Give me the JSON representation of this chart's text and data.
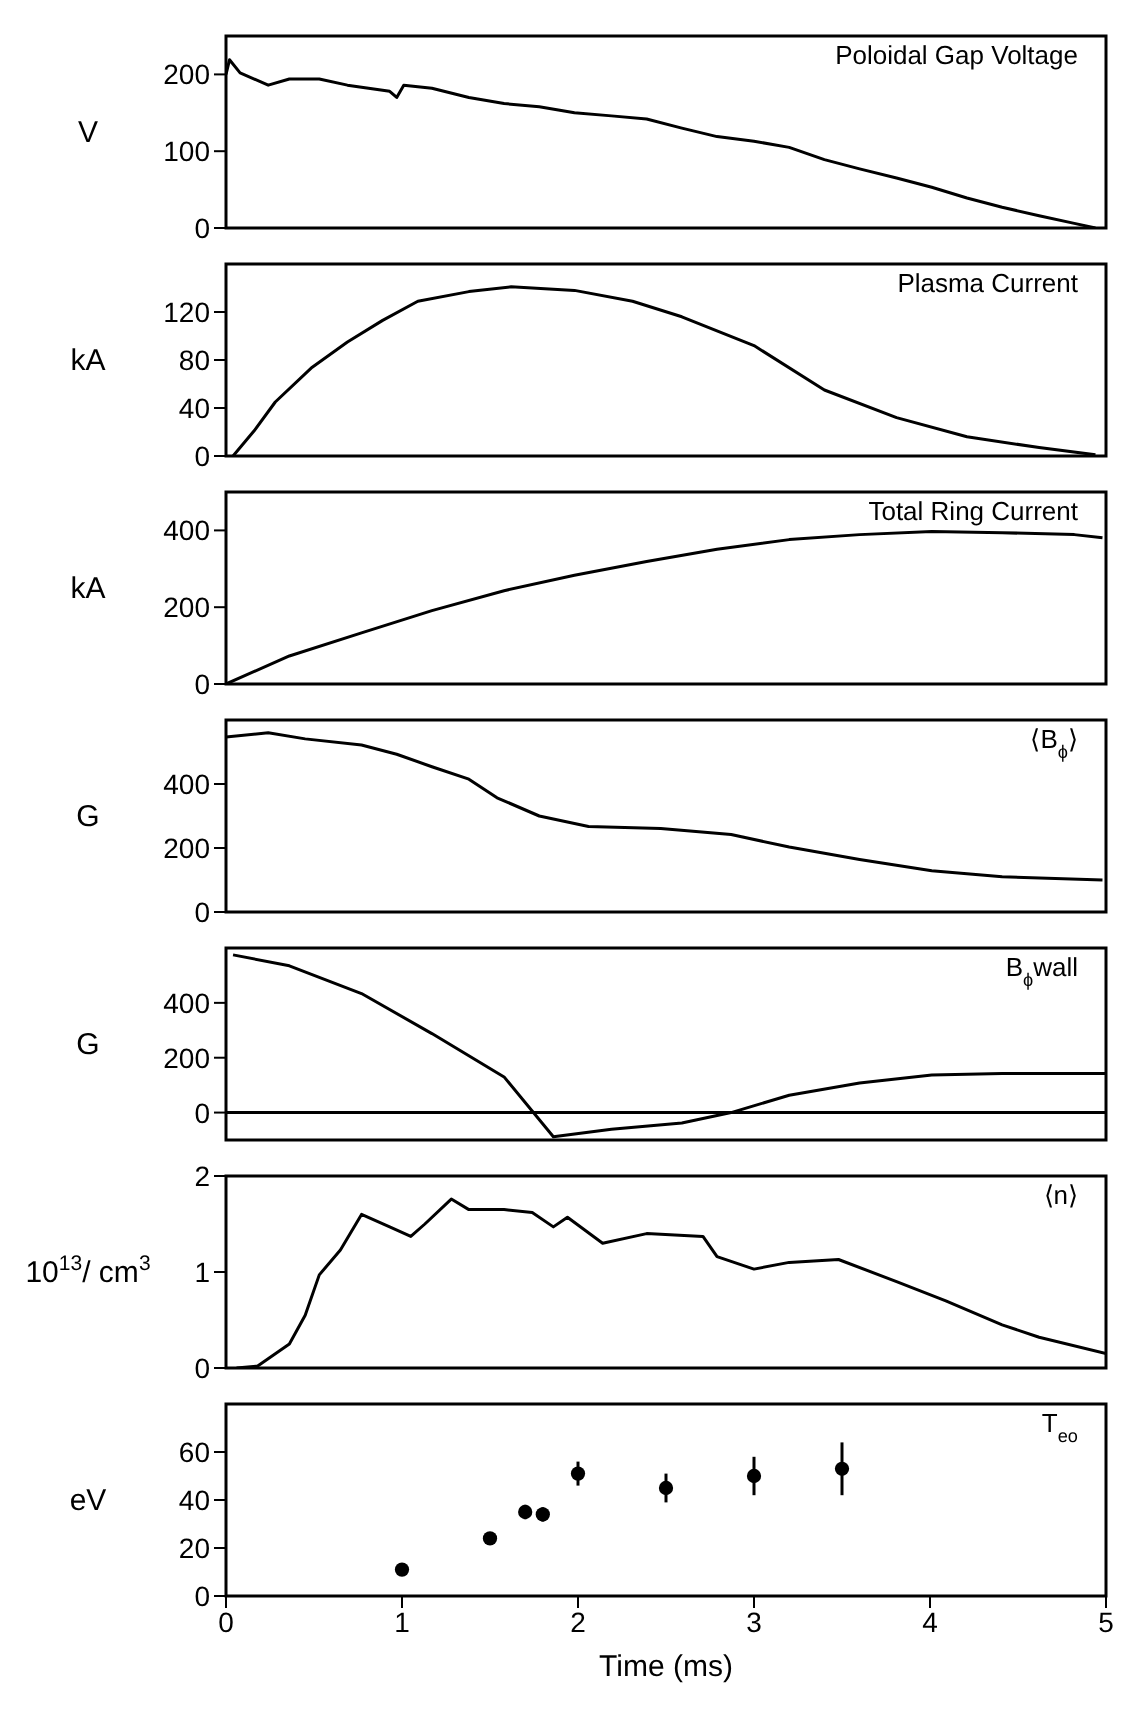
{
  "chart_data": [
    {
      "type": "line",
      "title": "Poloidal Gap Voltage",
      "ylabel": "V",
      "xlim": [
        0,
        5
      ],
      "xticks": [
        0,
        1,
        2,
        3,
        4,
        5
      ],
      "ylim": [
        0,
        250
      ],
      "yticks": [
        0,
        100,
        200
      ],
      "tick_labels": "y",
      "marker": "none",
      "series": [
        {
          "color": "#000000",
          "x": [
            0,
            0.02,
            0.08,
            0.24,
            0.36,
            0.53,
            0.69,
            0.93,
            0.97,
            1.01,
            1.17,
            1.38,
            1.58,
            1.78,
            1.98,
            2.19,
            2.39,
            2.59,
            2.79,
            3.0,
            3.2,
            3.4,
            3.6,
            3.81,
            4.01,
            4.21,
            4.41,
            4.62,
            4.82,
            4.94
          ],
          "values": [
            200,
            219,
            202,
            186,
            194,
            194,
            186,
            178,
            170,
            186,
            182,
            170,
            162,
            158,
            150,
            146,
            142,
            130,
            119,
            113,
            105,
            89,
            77,
            65,
            53,
            39,
            27,
            16,
            6,
            0
          ]
        }
      ]
    },
    {
      "type": "line",
      "title": "Plasma Current",
      "ylabel": "kA",
      "xlim": [
        0,
        5
      ],
      "xticks": [
        0,
        1,
        2,
        3,
        4,
        5
      ],
      "ylim": [
        0,
        160
      ],
      "yticks": [
        0,
        40,
        80,
        120
      ],
      "tick_labels": "y",
      "marker": "none",
      "series": [
        {
          "color": "#000000",
          "x": [
            0.04,
            0.16,
            0.28,
            0.49,
            0.69,
            0.89,
            1.09,
            1.38,
            1.62,
            1.98,
            2.31,
            2.59,
            3.0,
            3.4,
            3.81,
            4.21,
            4.62,
            4.94
          ],
          "values": [
            0,
            21,
            45,
            74,
            95,
            113,
            129,
            137,
            141,
            138,
            129,
            116,
            92,
            55,
            32,
            16,
            7,
            1
          ]
        }
      ]
    },
    {
      "type": "line",
      "title": "Total Ring Current",
      "ylabel": "kA",
      "xlim": [
        0,
        5
      ],
      "xticks": [
        0,
        1,
        2,
        3,
        4,
        5
      ],
      "ylim": [
        0,
        500
      ],
      "yticks": [
        0,
        200,
        400
      ],
      "tick_labels": "y",
      "marker": "none",
      "series": [
        {
          "color": "#000000",
          "x": [
            0,
            0.36,
            0.77,
            1.17,
            1.58,
            1.98,
            2.39,
            2.79,
            3.2,
            3.6,
            4.01,
            4.41,
            4.82,
            4.98
          ],
          "values": [
            0,
            73,
            133,
            191,
            243,
            283,
            319,
            351,
            376,
            389,
            397,
            394,
            389,
            381
          ]
        }
      ]
    },
    {
      "type": "line",
      "title": "⟨B$_{ϕ}$⟩",
      "ylabel": "G",
      "xlim": [
        0,
        5
      ],
      "xticks": [
        0,
        1,
        2,
        3,
        4,
        5
      ],
      "ylim": [
        0,
        600
      ],
      "yticks": [
        0,
        200,
        400
      ],
      "tick_labels": "y",
      "marker": "none",
      "series": [
        {
          "color": "#000000",
          "x": [
            0,
            0.24,
            0.45,
            0.77,
            0.97,
            1.17,
            1.38,
            1.54,
            1.78,
            2.06,
            2.47,
            2.87,
            3.2,
            3.6,
            4.01,
            4.41,
            4.98
          ],
          "values": [
            547,
            560,
            541,
            522,
            493,
            454,
            415,
            357,
            300,
            267,
            261,
            242,
            203,
            164,
            129,
            110,
            100
          ]
        }
      ]
    },
    {
      "type": "line",
      "title": "B$_{ϕ}$wall",
      "ylabel": "G",
      "xlim": [
        0,
        5
      ],
      "xticks": [
        0,
        1,
        2,
        3,
        4,
        5
      ],
      "ylim": [
        -100,
        600
      ],
      "yticks": [
        0,
        200,
        400
      ],
      "tick_labels": "y",
      "marker": "none",
      "ref_lines": [
        {
          "axis": "y",
          "value": 0,
          "color": "#000000"
        }
      ],
      "series": [
        {
          "color": "#000000",
          "x": [
            0.04,
            0.36,
            0.77,
            1.17,
            1.58,
            1.86,
            2.19,
            2.59,
            2.87,
            3.2,
            3.6,
            4.01,
            4.41,
            5.0
          ],
          "values": [
            575,
            535,
            434,
            288,
            130,
            -88,
            -61,
            -38,
            0,
            63,
            108,
            137,
            142,
            142
          ]
        }
      ]
    },
    {
      "type": "line",
      "title": "⟨n⟩",
      "ylabel": "10$^{13}$/ cm$^{3}$",
      "xlim": [
        0,
        5
      ],
      "xticks": [
        0,
        1,
        2,
        3,
        4,
        5
      ],
      "ylim": [
        0,
        2
      ],
      "yticks": [
        0,
        1,
        2
      ],
      "tick_labels": "y",
      "marker": "none",
      "series": [
        {
          "color": "#000000",
          "x": [
            0.06,
            0.18,
            0.36,
            0.45,
            0.53,
            0.65,
            0.77,
            0.93,
            1.05,
            1.13,
            1.28,
            1.38,
            1.58,
            1.74,
            1.86,
            1.94,
            2.14,
            2.39,
            2.71,
            2.79,
            3.0,
            3.2,
            3.48,
            3.81,
            4.09,
            4.41,
            4.62,
            5.0
          ],
          "values": [
            0,
            0.02,
            0.25,
            0.55,
            0.97,
            1.23,
            1.6,
            1.47,
            1.37,
            1.5,
            1.76,
            1.65,
            1.65,
            1.62,
            1.47,
            1.57,
            1.3,
            1.4,
            1.37,
            1.16,
            1.03,
            1.1,
            1.13,
            0.9,
            0.7,
            0.45,
            0.32,
            0.15
          ]
        }
      ]
    },
    {
      "type": "scatter",
      "title": "T$_{eo}$",
      "ylabel": "eV",
      "xlabel": "Time (ms)",
      "xlim": [
        0,
        5
      ],
      "xticks": [
        0,
        1,
        2,
        3,
        4,
        5
      ],
      "ylim": [
        0,
        80
      ],
      "yticks": [
        0,
        20,
        40,
        60
      ],
      "marker": "circle",
      "series": [
        {
          "color": "#000000",
          "x": [
            1,
            1.5,
            1.7,
            1.8,
            2,
            2.5,
            3,
            3.5
          ],
          "values": [
            11,
            24,
            35,
            34,
            51,
            45,
            50,
            53
          ],
          "errors": [
            null,
            null,
            3,
            3,
            5,
            6,
            8,
            11
          ]
        }
      ]
    }
  ]
}
